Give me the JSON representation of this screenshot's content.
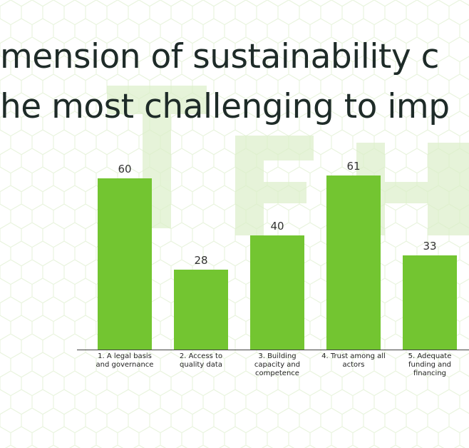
{
  "chart_data": {
    "type": "bar",
    "title_lines": [
      "mension of sustainability c",
      "he most challenging to imp"
    ],
    "categories": [
      "1. A legal basis and governance",
      "2. Access to quality data",
      "3. Building capacity and competence",
      "4. Trust among all actors",
      "5. Adequate funding and financing"
    ],
    "values": [
      60,
      28,
      40,
      61,
      33
    ],
    "color": "#73c531"
  }
}
